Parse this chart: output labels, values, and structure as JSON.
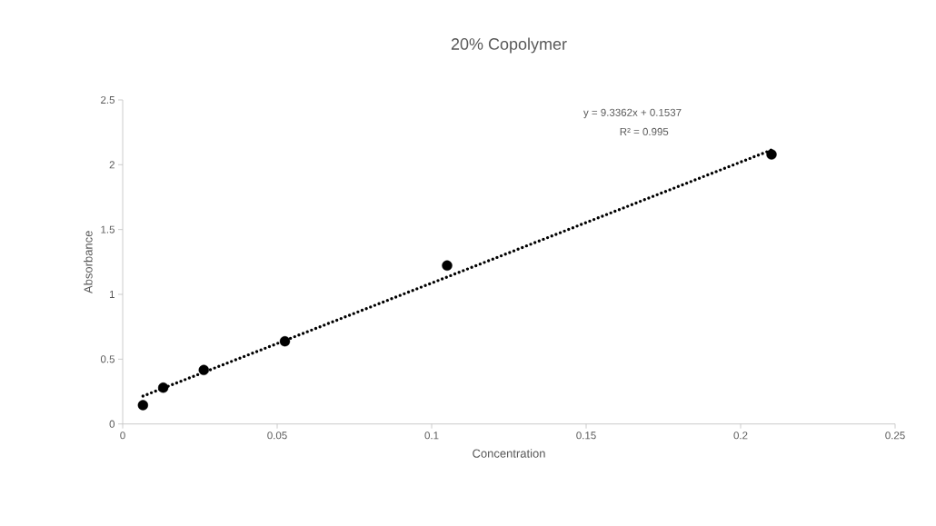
{
  "chart_data": {
    "type": "scatter",
    "title": "20% Copolymer",
    "xlabel": "Concentration",
    "ylabel": "Absorbance",
    "xlim": [
      0,
      0.25
    ],
    "xticks": [
      0,
      0.05,
      0.1,
      0.15,
      0.2,
      0.25
    ],
    "ylim": [
      0,
      2.5
    ],
    "yticks": [
      0,
      0.5,
      1,
      1.5,
      2,
      2.5
    ],
    "grid": false,
    "legend": false,
    "series": [
      {
        "color": "#000000",
        "marker": "circle",
        "x": [
          0.00656,
          0.013125,
          0.02625,
          0.0525,
          0.105,
          0.21
        ],
        "values": [
          0.145,
          0.28,
          0.416,
          0.638,
          1.222,
          2.079
        ]
      },
      {
        "type": "line",
        "color": "#000000",
        "line_style": "dotted",
        "marker": "none",
        "x": [
          0.00656,
          0.21
        ],
        "values": [
          0.215,
          2.114
        ]
      }
    ],
    "annotations": [
      "y = 9.3362x + 0.1537",
      "R² = 0.995"
    ]
  }
}
